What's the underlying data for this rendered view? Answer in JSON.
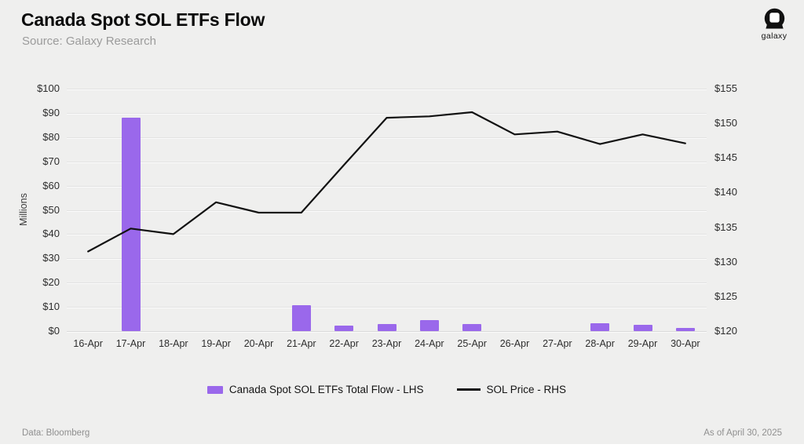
{
  "header": {
    "title": "Canada Spot SOL ETFs Flow",
    "subtitle": "Source: Galaxy Research",
    "logo_text": "galaxy"
  },
  "footer": {
    "left": "Data: Bloomberg",
    "right": "As of April 30, 2025"
  },
  "colors": {
    "bar_purple": "#9a68eb",
    "line_black": "#121212",
    "background": "#efefee",
    "gridline": "#e2e2e2"
  },
  "chart_data": {
    "type": "bar",
    "title": "Canada Spot SOL ETFs Flow",
    "categories": [
      "16-Apr",
      "17-Apr",
      "18-Apr",
      "19-Apr",
      "20-Apr",
      "21-Apr",
      "22-Apr",
      "23-Apr",
      "24-Apr",
      "25-Apr",
      "26-Apr",
      "27-Apr",
      "28-Apr",
      "29-Apr",
      "30-Apr"
    ],
    "series": [
      {
        "name": "Canada Spot SOL ETFs Total Flow - LHS",
        "type": "bar",
        "axis": "left",
        "color": "#9a68eb",
        "values": [
          0,
          88,
          0,
          0,
          0,
          10.6,
          2.3,
          2.9,
          4.4,
          2.8,
          0,
          0,
          3.2,
          2.7,
          1.2
        ]
      },
      {
        "name": "SOL Price - RHS",
        "type": "line",
        "axis": "right",
        "color": "#121212",
        "values": [
          131.5,
          134.8,
          134.0,
          138.6,
          137.1,
          137.1,
          144.0,
          150.8,
          151.0,
          151.6,
          148.4,
          148.8,
          147.0,
          148.4,
          147.1
        ]
      }
    ],
    "left_axis": {
      "label": "Millions",
      "unit": "USD millions",
      "min": 0,
      "max": 100,
      "step": 10,
      "tick_values": [
        0,
        10,
        20,
        30,
        40,
        50,
        60,
        70,
        80,
        90,
        100
      ],
      "tick_labels": [
        "$0",
        "$10",
        "$20",
        "$30",
        "$40",
        "$50",
        "$60",
        "$70",
        "$80",
        "$90",
        "$100"
      ]
    },
    "right_axis": {
      "label": "",
      "unit": "USD",
      "min": 120,
      "max": 155,
      "step": 5,
      "tick_values": [
        120,
        125,
        130,
        135,
        140,
        145,
        150,
        155
      ],
      "tick_labels": [
        "$120",
        "$125",
        "$130",
        "$135",
        "$140",
        "$145",
        "$150",
        "$155"
      ]
    },
    "grid": "horizontal",
    "legend_position": "bottom"
  }
}
